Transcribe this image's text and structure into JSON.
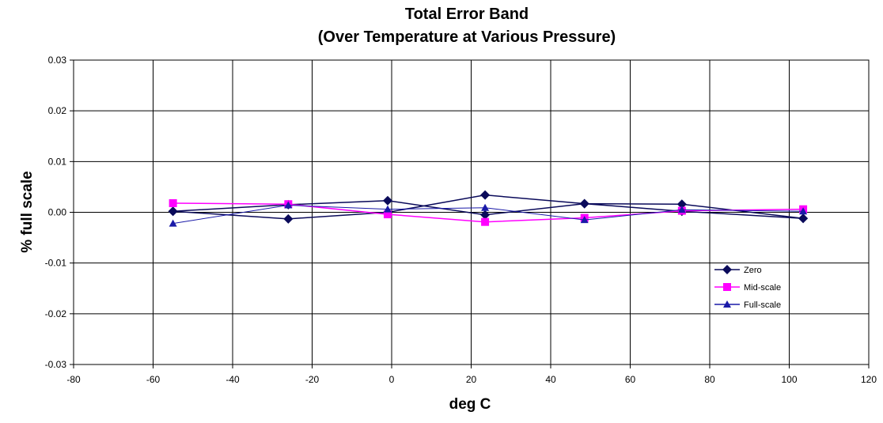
{
  "chart_data": {
    "type": "line",
    "title": "Total Error Band",
    "subtitle": "(Over Temperature at Various Pressure)",
    "xlabel": "deg C",
    "ylabel": "% full scale",
    "xlim": [
      -80,
      120
    ],
    "ylim": [
      -0.03,
      0.03
    ],
    "x_ticks": [
      "-80",
      "-60",
      "-40",
      "-20",
      "0",
      "20",
      "40",
      "60",
      "80",
      "100",
      "120"
    ],
    "y_ticks": [
      "0.03",
      "0.02",
      "0.01",
      "0.00",
      "-0.01",
      "-0.02",
      "-0.03"
    ],
    "x_tick_values": [
      -80,
      -60,
      -40,
      -20,
      0,
      20,
      40,
      60,
      80,
      100,
      120
    ],
    "y_tick_values": [
      0.03,
      0.02,
      0.01,
      0.0,
      -0.01,
      -0.02,
      -0.03
    ],
    "grid": true,
    "legend_position": "right",
    "series": [
      {
        "name": "Zero",
        "color": "#0a0a5a",
        "marker": "diamond",
        "traces": [
          {
            "x": [
              -55,
              -26,
              -1,
              23.5,
              48.5,
              73,
              103.5
            ],
            "y": [
              0.0002,
              -0.0013,
              0.0,
              0.0034,
              0.0017,
              0.0016,
              -0.0012
            ]
          },
          {
            "x": [
              -55,
              -26,
              -1,
              23.5,
              48.5,
              73,
              103.5
            ],
            "y": [
              0.0002,
              0.0015,
              0.0023,
              -0.0005,
              0.0017,
              0.0002,
              -0.0012
            ]
          }
        ]
      },
      {
        "name": "Mid-scale",
        "color": "#ff00ff",
        "marker": "square",
        "traces": [
          {
            "x": [
              -55,
              -26,
              -1,
              23.5,
              48.5,
              73,
              103.5
            ],
            "y": [
              0.0018,
              0.0016,
              -0.0004,
              -0.0019,
              -0.0011,
              0.0003,
              0.0006
            ]
          }
        ]
      },
      {
        "name": "Full-scale",
        "color": "#1a1aa8",
        "marker": "triangle",
        "traces": [
          {
            "x": [
              -55,
              -26,
              -1,
              23.5,
              48.5,
              73,
              103.5
            ],
            "y": [
              -0.0022,
              0.0014,
              0.0006,
              0.0009,
              -0.0015,
              0.0005,
              0.0002
            ]
          }
        ]
      }
    ]
  }
}
